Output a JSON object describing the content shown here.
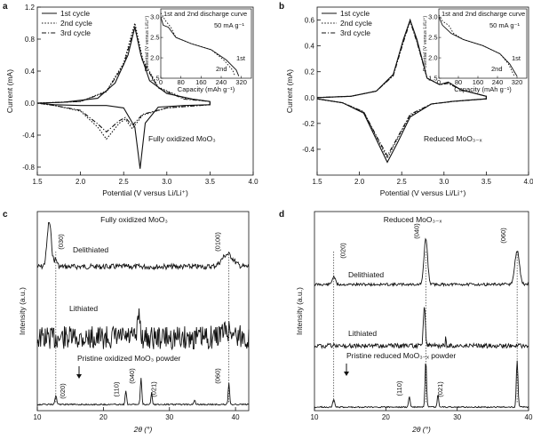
{
  "panels": {
    "a": "a",
    "b": "b",
    "c": "c",
    "d": "d"
  },
  "chart_data": [
    {
      "id": "a",
      "type": "line",
      "xlabel": "Potential (V versus Li/Li⁺)",
      "ylabel": "Current (mA)",
      "xlim": [
        1.5,
        4.0
      ],
      "ylim": [
        -0.9,
        1.2
      ],
      "xticks": [
        "1.5",
        "2.0",
        "2.5",
        "3.0",
        "3.5",
        "4.0"
      ],
      "yticks": [
        "-0.8",
        "-0.4",
        "0.0",
        "0.4",
        "0.8",
        "1.2"
      ],
      "annotation": "Fully oxidized MoO₃",
      "legend": [
        "1st cycle",
        "2nd cycle",
        "3rd cycle"
      ],
      "series": [
        {
          "name": "1st cycle",
          "style": "solid",
          "values": [
            [
              1.5,
              0.0
            ],
            [
              1.8,
              0.01
            ],
            [
              2.2,
              0.06
            ],
            [
              2.4,
              0.25
            ],
            [
              2.55,
              0.6
            ],
            [
              2.63,
              0.95
            ],
            [
              2.7,
              0.6
            ],
            [
              2.8,
              0.28
            ],
            [
              3.0,
              0.12
            ],
            [
              3.3,
              0.05
            ],
            [
              3.5,
              0.02
            ],
            [
              3.5,
              -0.02
            ],
            [
              3.2,
              -0.03
            ],
            [
              2.9,
              -0.05
            ],
            [
              2.75,
              -0.25
            ],
            [
              2.69,
              -0.82
            ],
            [
              2.63,
              -0.3
            ],
            [
              2.5,
              -0.06
            ],
            [
              2.3,
              -0.03
            ],
            [
              2.0,
              -0.03
            ],
            [
              1.7,
              -0.02
            ],
            [
              1.5,
              0.0
            ]
          ]
        },
        {
          "name": "2nd cycle",
          "style": "dotted",
          "values": [
            [
              1.5,
              0.0
            ],
            [
              2.0,
              0.02
            ],
            [
              2.3,
              0.15
            ],
            [
              2.5,
              0.5
            ],
            [
              2.63,
              1.0
            ],
            [
              2.72,
              0.55
            ],
            [
              2.9,
              0.2
            ],
            [
              3.2,
              0.06
            ],
            [
              3.5,
              0.02
            ],
            [
              3.5,
              -0.02
            ],
            [
              3.0,
              -0.06
            ],
            [
              2.72,
              -0.15
            ],
            [
              2.6,
              -0.32
            ],
            [
              2.52,
              -0.2
            ],
            [
              2.45,
              -0.25
            ],
            [
              2.3,
              -0.45
            ],
            [
              2.2,
              -0.3
            ],
            [
              2.0,
              -0.1
            ],
            [
              1.7,
              -0.03
            ],
            [
              1.5,
              0.0
            ]
          ]
        },
        {
          "name": "3rd cycle",
          "style": "dashdot",
          "values": [
            [
              1.5,
              0.0
            ],
            [
              2.0,
              0.02
            ],
            [
              2.3,
              0.14
            ],
            [
              2.5,
              0.48
            ],
            [
              2.63,
              0.95
            ],
            [
              2.72,
              0.52
            ],
            [
              2.9,
              0.19
            ],
            [
              3.2,
              0.05
            ],
            [
              3.5,
              0.02
            ],
            [
              3.5,
              -0.02
            ],
            [
              3.0,
              -0.06
            ],
            [
              2.72,
              -0.14
            ],
            [
              2.6,
              -0.28
            ],
            [
              2.52,
              -0.18
            ],
            [
              2.45,
              -0.22
            ],
            [
              2.3,
              -0.36
            ],
            [
              2.2,
              -0.26
            ],
            [
              2.0,
              -0.09
            ],
            [
              1.7,
              -0.03
            ],
            [
              1.5,
              0.0
            ]
          ]
        }
      ],
      "inset": {
        "title": "1st and 2nd discharge curve",
        "rate": "50 mA g⁻¹",
        "xlabel": "Capacity (mAh g⁻¹)",
        "ylabel": "Potential (V versus Li/Li⁺)",
        "xticks": [
          "0",
          "80",
          "160",
          "240",
          "320"
        ],
        "yticks": [
          "1.5",
          "2.0",
          "2.5",
          "3.0"
        ],
        "xlim": [
          0,
          360
        ],
        "ylim": [
          1.5,
          3.2
        ],
        "labels": {
          "first": "1st",
          "second": "2nd"
        },
        "series": [
          {
            "name": "1st",
            "style": "solid",
            "values": [
              [
                0,
                3.0
              ],
              [
                10,
                2.8
              ],
              [
                30,
                2.75
              ],
              [
                60,
                2.5
              ],
              [
                120,
                2.35
              ],
              [
                200,
                2.2
              ],
              [
                260,
                1.95
              ],
              [
                300,
                1.7
              ],
              [
                310,
                1.55
              ]
            ]
          },
          {
            "name": "2nd",
            "style": "dotted",
            "values": [
              [
                0,
                3.1
              ],
              [
                20,
                2.9
              ],
              [
                40,
                2.75
              ],
              [
                60,
                2.5
              ],
              [
                120,
                2.35
              ],
              [
                200,
                2.2
              ],
              [
                250,
                1.95
              ],
              [
                285,
                1.7
              ],
              [
                295,
                1.55
              ]
            ]
          }
        ]
      }
    },
    {
      "id": "b",
      "type": "line",
      "xlabel": "Potential (V versus Li/Li⁺)",
      "ylabel": "Current (mA)",
      "xlim": [
        1.5,
        4.0
      ],
      "ylim": [
        -0.6,
        0.7
      ],
      "xticks": [
        "1.5",
        "2.0",
        "2.5",
        "3.0",
        "3.5",
        "4.0"
      ],
      "yticks": [
        "-0.4",
        "-0.2",
        "0.0",
        "0.2",
        "0.4",
        "0.6"
      ],
      "annotation": "Reduced MoO₃₋ₓ",
      "legend": [
        "1st cycle",
        "2nd cycle",
        "3rd cycle"
      ],
      "series": [
        {
          "name": "1st cycle",
          "style": "solid",
          "values": [
            [
              1.5,
              0.0
            ],
            [
              1.9,
              0.01
            ],
            [
              2.2,
              0.05
            ],
            [
              2.4,
              0.18
            ],
            [
              2.52,
              0.45
            ],
            [
              2.6,
              0.6
            ],
            [
              2.68,
              0.45
            ],
            [
              2.8,
              0.15
            ],
            [
              2.95,
              0.1
            ],
            [
              3.05,
              0.12
            ],
            [
              3.2,
              0.06
            ],
            [
              3.5,
              0.01
            ],
            [
              3.5,
              -0.01
            ],
            [
              3.1,
              -0.03
            ],
            [
              2.85,
              -0.05
            ],
            [
              2.6,
              -0.15
            ],
            [
              2.45,
              -0.35
            ],
            [
              2.33,
              -0.5
            ],
            [
              2.22,
              -0.35
            ],
            [
              2.05,
              -0.12
            ],
            [
              1.8,
              -0.04
            ],
            [
              1.5,
              -0.01
            ]
          ]
        },
        {
          "name": "2nd cycle",
          "style": "dotted",
          "values": [
            [
              1.5,
              0.0
            ],
            [
              1.9,
              0.01
            ],
            [
              2.2,
              0.05
            ],
            [
              2.4,
              0.17
            ],
            [
              2.52,
              0.44
            ],
            [
              2.6,
              0.6
            ],
            [
              2.68,
              0.44
            ],
            [
              2.8,
              0.15
            ],
            [
              2.95,
              0.1
            ],
            [
              3.05,
              0.11
            ],
            [
              3.2,
              0.06
            ],
            [
              3.5,
              0.01
            ],
            [
              3.5,
              -0.01
            ],
            [
              3.1,
              -0.03
            ],
            [
              2.85,
              -0.05
            ],
            [
              2.6,
              -0.14
            ],
            [
              2.45,
              -0.32
            ],
            [
              2.33,
              -0.47
            ],
            [
              2.22,
              -0.33
            ],
            [
              2.05,
              -0.11
            ],
            [
              1.8,
              -0.04
            ],
            [
              1.5,
              -0.01
            ]
          ]
        },
        {
          "name": "3rd cycle",
          "style": "dashdot",
          "values": [
            [
              1.5,
              0.0
            ],
            [
              1.9,
              0.01
            ],
            [
              2.2,
              0.05
            ],
            [
              2.4,
              0.17
            ],
            [
              2.52,
              0.43
            ],
            [
              2.6,
              0.59
            ],
            [
              2.68,
              0.43
            ],
            [
              2.8,
              0.15
            ],
            [
              2.95,
              0.1
            ],
            [
              3.05,
              0.11
            ],
            [
              3.2,
              0.06
            ],
            [
              3.5,
              0.01
            ],
            [
              3.5,
              -0.01
            ],
            [
              3.1,
              -0.03
            ],
            [
              2.85,
              -0.05
            ],
            [
              2.6,
              -0.13
            ],
            [
              2.45,
              -0.31
            ],
            [
              2.33,
              -0.45
            ],
            [
              2.22,
              -0.32
            ],
            [
              2.05,
              -0.11
            ],
            [
              1.8,
              -0.04
            ],
            [
              1.5,
              -0.01
            ]
          ]
        }
      ],
      "inset": {
        "title": "1st and 2nd discharge curve",
        "rate": "50 mA g⁻¹",
        "xlabel": "Capacity (mAh g⁻¹)",
        "ylabel": "Potential (V versus Li/Li⁺)",
        "xticks": [
          "0",
          "80",
          "160",
          "240",
          "320"
        ],
        "yticks": [
          "1.5",
          "2.0",
          "2.5",
          "3.0"
        ],
        "xlim": [
          0,
          360
        ],
        "ylim": [
          1.5,
          3.2
        ],
        "labels": {
          "first": "1st",
          "second": "2nd"
        },
        "series": [
          {
            "name": "1st",
            "style": "solid",
            "values": [
              [
                0,
                3.0
              ],
              [
                15,
                2.8
              ],
              [
                50,
                2.6
              ],
              [
                100,
                2.45
              ],
              [
                180,
                2.3
              ],
              [
                250,
                2.1
              ],
              [
                290,
                1.85
              ],
              [
                315,
                1.6
              ],
              [
                320,
                1.55
              ]
            ]
          },
          {
            "name": "2nd",
            "style": "dotted",
            "values": [
              [
                0,
                3.05
              ],
              [
                15,
                2.9
              ],
              [
                40,
                2.8
              ],
              [
                60,
                2.6
              ],
              [
                100,
                2.45
              ],
              [
                180,
                2.3
              ],
              [
                250,
                2.1
              ],
              [
                285,
                1.85
              ],
              [
                305,
                1.6
              ],
              [
                310,
                1.55
              ]
            ]
          }
        ]
      }
    },
    {
      "id": "c",
      "type": "line",
      "xlabel": "2θ (°)",
      "ylabel": "Intensity (a.u.)",
      "xlim": [
        10,
        42
      ],
      "xticks": [
        "10",
        "20",
        "30",
        "40"
      ],
      "title": "Fully oxidized MoO₃",
      "traces": [
        "Delithiated",
        "Lithiated",
        "Pristine oxidized MoO₃ powder"
      ],
      "peak_labels": [
        {
          "text": "(030)",
          "x": 12.8
        },
        {
          "text": "(0100)",
          "x": 39.0
        },
        {
          "text": "(020)",
          "x": 12.8
        },
        {
          "text": "(110)",
          "x": 23.4
        },
        {
          "text": "(040)",
          "x": 25.7
        },
        {
          "text": "(021)",
          "x": 27.3
        },
        {
          "text": "(060)",
          "x": 39.0
        }
      ],
      "reference_lines": [
        12.8,
        39.0
      ]
    },
    {
      "id": "d",
      "type": "line",
      "xlabel": "2θ (°)",
      "ylabel": "Intensity (a.u.)",
      "xlim": [
        10,
        40
      ],
      "xticks": [
        "10",
        "20",
        "30",
        "40"
      ],
      "title": "Reduced MoO₃₋ₓ",
      "traces": [
        "Delithiated",
        "Lithiated",
        "Pristine reduced MoO₃₋ₓ powder"
      ],
      "peak_labels": [
        {
          "text": "(020)",
          "x": 12.7
        },
        {
          "text": "(040)",
          "x": 25.6
        },
        {
          "text": "(060)",
          "x": 38.4
        },
        {
          "text": "(110)",
          "x": 23.3
        },
        {
          "text": "(021)",
          "x": 27.3
        }
      ],
      "reference_lines": [
        12.7,
        25.6,
        38.4
      ]
    }
  ]
}
